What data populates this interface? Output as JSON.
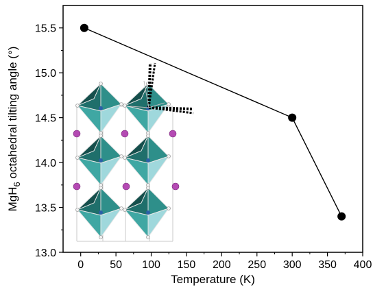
{
  "chart_data": {
    "type": "line",
    "xlabel": "Temperature (K)",
    "ylabel": {
      "prefix": "MgH",
      "subscript": "6",
      "suffix": " octahedral tilting angle (°)"
    },
    "xlim": [
      -25,
      400
    ],
    "ylim": [
      13.0,
      15.75
    ],
    "xticks": [
      0,
      50,
      100,
      150,
      200,
      250,
      300,
      350,
      400
    ],
    "xtick_labels": [
      "0",
      "50",
      "100",
      "150",
      "200",
      "250",
      "300",
      "350",
      "400"
    ],
    "yticks": [
      13.0,
      13.5,
      14.0,
      14.5,
      15.0,
      15.5
    ],
    "ytick_labels": [
      "13.0",
      "13.5",
      "14.0",
      "14.5",
      "15.0",
      "15.5"
    ],
    "series": [
      {
        "points": [
          {
            "x": 5,
            "y": 15.5
          },
          {
            "x": 300,
            "y": 14.5
          },
          {
            "x": 370,
            "y": 13.4
          }
        ]
      }
    ],
    "inset": "crystal-structure-of-tilted-MgH6-octahedra",
    "colors": {
      "line": "#000000",
      "marker": "#000000",
      "octahedron_dark": "#1f6f6b",
      "octahedron_mid": "#3fa7a3",
      "octahedron_light": "#9fd8dc",
      "cation": "#b44ab3"
    }
  }
}
